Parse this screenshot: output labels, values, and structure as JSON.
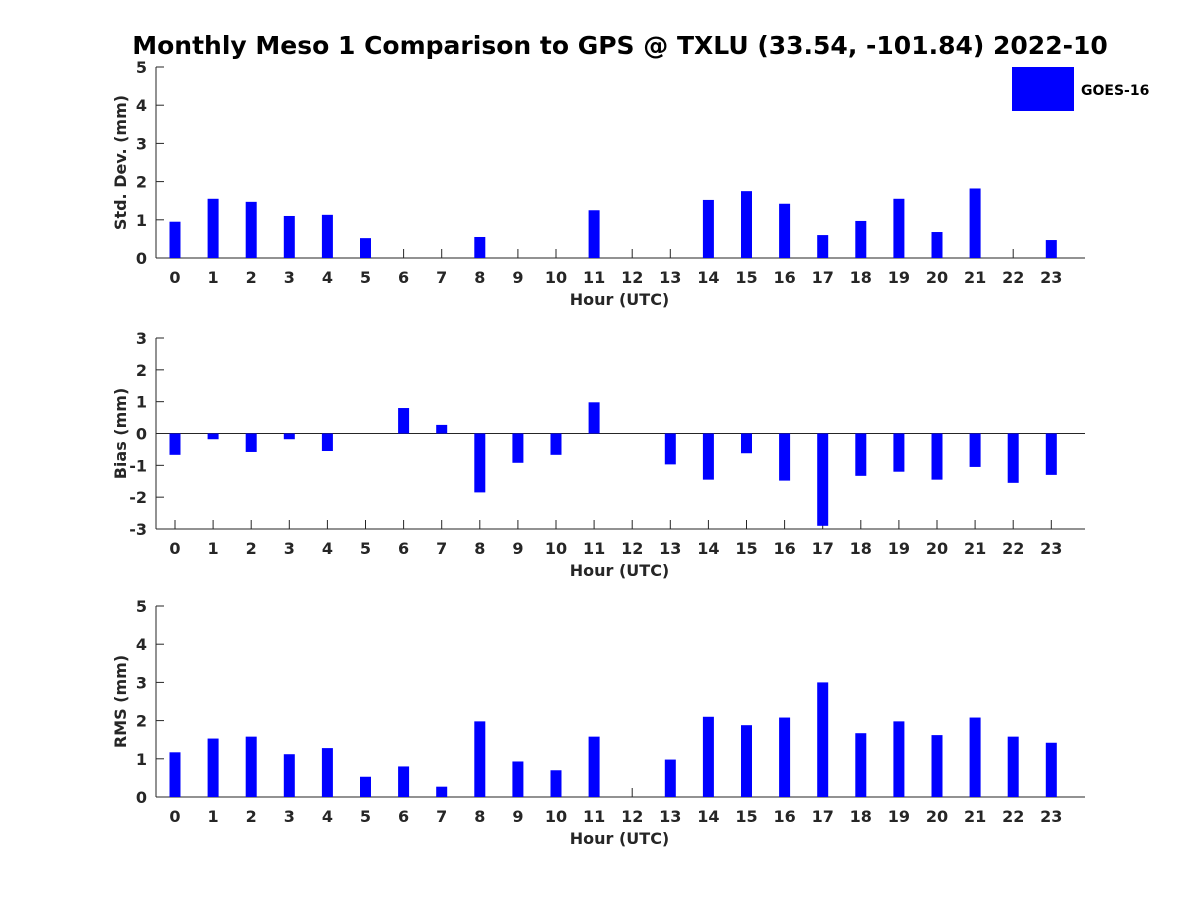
{
  "title": "Monthly Meso 1 Comparison to GPS @ TXLU (33.54, -101.84) 2022-10",
  "legend": {
    "label": "GOES-16",
    "color": "#0000ff",
    "placement": "top-right"
  },
  "chart_data": [
    {
      "type": "bar",
      "ylabel": "Std. Dev. (mm)",
      "xlabel": "Hour (UTC)",
      "ylim": [
        0,
        5
      ],
      "yticks": [
        0,
        1,
        2,
        3,
        4,
        5
      ],
      "categories": [
        "0",
        "1",
        "2",
        "3",
        "4",
        "5",
        "6",
        "7",
        "8",
        "9",
        "10",
        "11",
        "12",
        "13",
        "14",
        "15",
        "16",
        "17",
        "18",
        "19",
        "20",
        "21",
        "22",
        "23"
      ],
      "series": [
        {
          "name": "GOES-16",
          "values": [
            0.95,
            1.55,
            1.47,
            1.1,
            1.13,
            0.52,
            0,
            0,
            0.55,
            0,
            0,
            1.25,
            0,
            0,
            1.52,
            1.75,
            1.42,
            0.6,
            0.97,
            1.55,
            0.68,
            1.82,
            0,
            0.47
          ]
        }
      ]
    },
    {
      "type": "bar",
      "ylabel": "Bias (mm)",
      "xlabel": "Hour (UTC)",
      "ylim": [
        -3,
        3
      ],
      "yticks": [
        -3,
        -2,
        -1,
        0,
        1,
        2,
        3
      ],
      "categories": [
        "0",
        "1",
        "2",
        "3",
        "4",
        "5",
        "6",
        "7",
        "8",
        "9",
        "10",
        "11",
        "12",
        "13",
        "14",
        "15",
        "16",
        "17",
        "18",
        "19",
        "20",
        "21",
        "22",
        "23"
      ],
      "series": [
        {
          "name": "GOES-16",
          "values": [
            -0.67,
            -0.18,
            -0.58,
            -0.18,
            -0.55,
            0,
            0.8,
            0.27,
            -1.85,
            -0.92,
            -0.67,
            0.98,
            0,
            -0.97,
            -1.45,
            -0.62,
            -1.48,
            -2.9,
            -1.33,
            -1.2,
            -1.45,
            -1.05,
            -1.55,
            -1.3
          ]
        }
      ]
    },
    {
      "type": "bar",
      "ylabel": "RMS (mm)",
      "xlabel": "Hour (UTC)",
      "ylim": [
        0,
        5
      ],
      "yticks": [
        0,
        1,
        2,
        3,
        4,
        5
      ],
      "categories": [
        "0",
        "1",
        "2",
        "3",
        "4",
        "5",
        "6",
        "7",
        "8",
        "9",
        "10",
        "11",
        "12",
        "13",
        "14",
        "15",
        "16",
        "17",
        "18",
        "19",
        "20",
        "21",
        "22",
        "23"
      ],
      "series": [
        {
          "name": "GOES-16",
          "values": [
            1.17,
            1.53,
            1.58,
            1.12,
            1.28,
            0.53,
            0.8,
            0.27,
            1.98,
            0.93,
            0.7,
            1.58,
            0,
            0.98,
            2.1,
            1.88,
            2.08,
            3.0,
            1.67,
            1.98,
            1.62,
            2.08,
            1.58,
            1.42
          ]
        }
      ]
    }
  ]
}
